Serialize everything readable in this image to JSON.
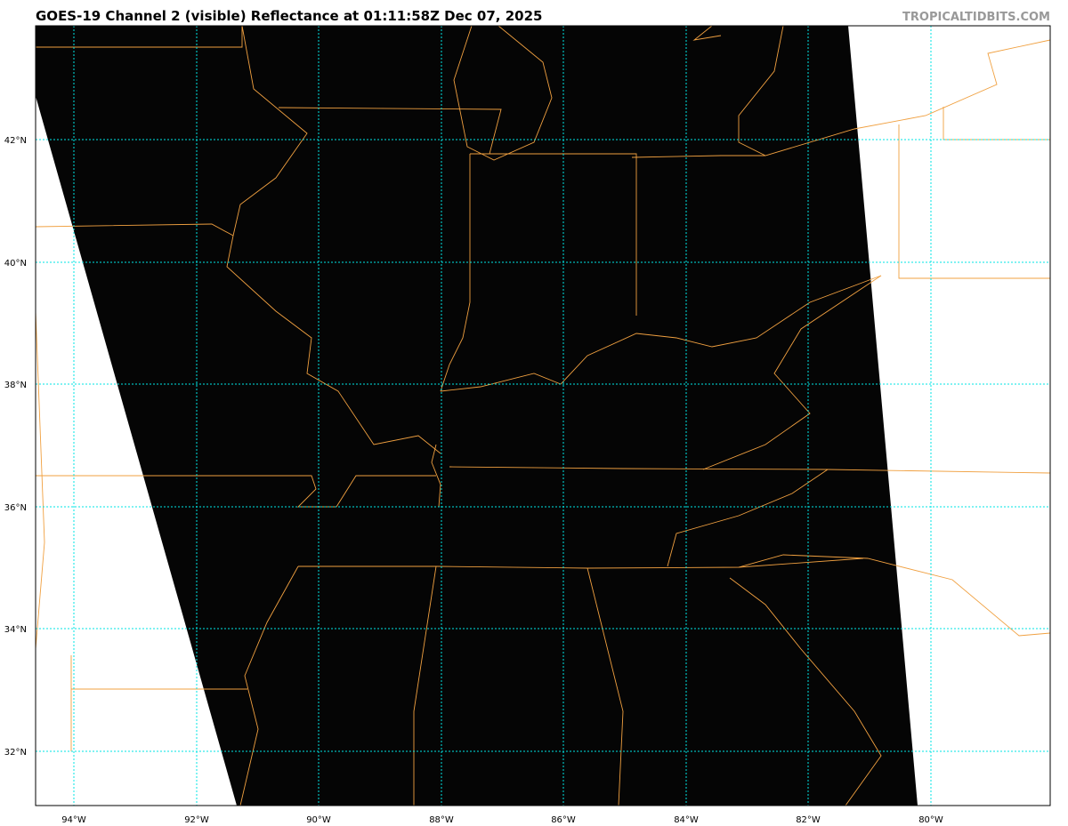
{
  "header": {
    "title": "GOES-19 Channel 2 (visible) Reflectance at 01:11:58Z Dec 07, 2025",
    "brand": "TROPICALTIDBITS.COM"
  },
  "map": {
    "lon_ticks": [
      "94°W",
      "92°W",
      "90°W",
      "88°W",
      "86°W",
      "84°W",
      "82°W",
      "80°W"
    ],
    "lat_ticks": [
      "42°N",
      "40°N",
      "38°N",
      "36°N",
      "34°N",
      "32°N"
    ],
    "colors": {
      "grid": "#00e5e5",
      "borders": "#f0a040",
      "imagery": "#050505",
      "no_data": "#ffffff"
    }
  }
}
